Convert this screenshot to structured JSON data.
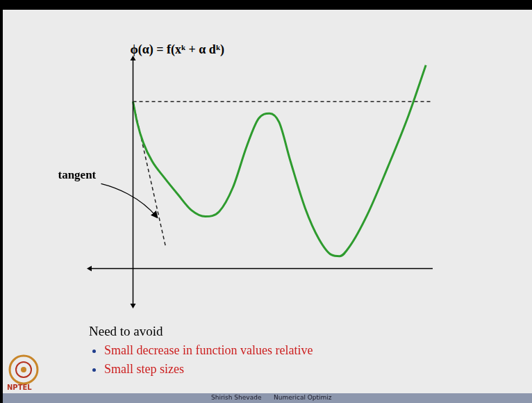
{
  "chart_data": {
    "type": "line",
    "title": "ϕ(α) = f(xᵏ + α dᵏ)",
    "annotations": [
      "tangent"
    ],
    "xlim": [
      -2,
      14.5
    ],
    "ylim": [
      -1.7,
      10.1
    ],
    "grid": false,
    "tick_labels": false,
    "series": [
      {
        "color": "#2e9b2e",
        "line_style": "solid",
        "x": [
          0,
          0.2,
          0.5,
          0.93,
          1.5,
          2.17,
          2.83,
          3.5,
          4.17,
          4.83,
          5.5,
          6.07,
          6.6,
          7.07,
          7.6,
          8.33,
          9,
          9.6,
          10,
          10.5,
          11.33,
          12.33,
          13.33,
          14.17
        ],
        "values": [
          8.1,
          7.1,
          6.1,
          5.2,
          4.43,
          3.6,
          2.83,
          2.53,
          2.77,
          3.93,
          5.93,
          7.27,
          7.53,
          7.1,
          5.27,
          2.93,
          1.43,
          0.67,
          0.6,
          1.1,
          2.6,
          4.93,
          7.43,
          9.87
        ]
      },
      {
        "color": "#222222",
        "line_style": "dashed",
        "x": [
          0,
          14.5
        ],
        "values": [
          8.1,
          8.1
        ]
      },
      {
        "color": "#222222",
        "line_style": "dashed",
        "x": [
          0,
          1.57
        ],
        "values": [
          8.1,
          1.1
        ]
      }
    ]
  },
  "slide": {
    "heading": "Need to avoid",
    "bullets": [
      "Small decrease in function values relative",
      "Small step sizes"
    ],
    "logo": "NPTEL",
    "footer": [
      "Shirish Shevade",
      "Numerical Optimiz"
    ]
  }
}
